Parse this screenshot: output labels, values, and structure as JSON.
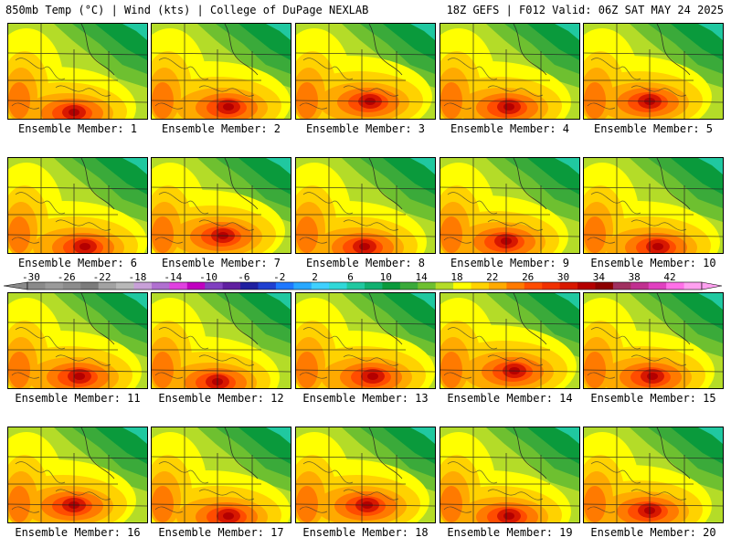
{
  "header": {
    "left": "850mb Temp (°C) | Wind (kts) | College of DuPage NEXLAB",
    "right": "18Z GEFS | F012 Valid: 06Z SAT MAY 24 2025"
  },
  "colorbar": {
    "tick_labels": [
      "-30",
      "-26",
      "-22",
      "-18",
      "-14",
      "-10",
      "-6",
      "-2",
      "2",
      "6",
      "10",
      "14",
      "18",
      "22",
      "26",
      "30",
      "34",
      "38",
      "42"
    ],
    "colors": [
      "#8a8a8a",
      "#9a9a9a",
      "#8c8c8c",
      "#7c7c7c",
      "#a2a2a2",
      "#b8b8b8",
      "#c8a0d8",
      "#b070d0",
      "#e040e0",
      "#c000c0",
      "#8040c0",
      "#6020a0",
      "#2020a0",
      "#2040d0",
      "#1e78ff",
      "#28a8ff",
      "#40d0ff",
      "#30d8d8",
      "#20c8a0",
      "#10b070",
      "#0a9a3c",
      "#3aaa3a",
      "#6ec030",
      "#b4dc28",
      "#ffff00",
      "#ffd200",
      "#ffaa00",
      "#ff7a00",
      "#ff4c00",
      "#f03000",
      "#d81800",
      "#b40000",
      "#8c0000",
      "#a03060",
      "#c03090",
      "#e040c0",
      "#ff70e8",
      "#ffa0f0"
    ]
  },
  "panels": [
    {
      "label": "Ensemble Member: 1"
    },
    {
      "label": "Ensemble Member: 2"
    },
    {
      "label": "Ensemble Member: 3"
    },
    {
      "label": "Ensemble Member: 4"
    },
    {
      "label": "Ensemble Member: 5"
    },
    {
      "label": "Ensemble Member: 6"
    },
    {
      "label": "Ensemble Member: 7"
    },
    {
      "label": "Ensemble Member: 8"
    },
    {
      "label": "Ensemble Member: 9"
    },
    {
      "label": "Ensemble Member: 10"
    },
    {
      "label": "Ensemble Member: 11"
    },
    {
      "label": "Ensemble Member: 12"
    },
    {
      "label": "Ensemble Member: 13"
    },
    {
      "label": "Ensemble Member: 14"
    },
    {
      "label": "Ensemble Member: 15"
    },
    {
      "label": "Ensemble Member: 16"
    },
    {
      "label": "Ensemble Member: 17"
    },
    {
      "label": "Ensemble Member: 18"
    },
    {
      "label": "Ensemble Member: 19"
    },
    {
      "label": "Ensemble Member: 20"
    }
  ]
}
